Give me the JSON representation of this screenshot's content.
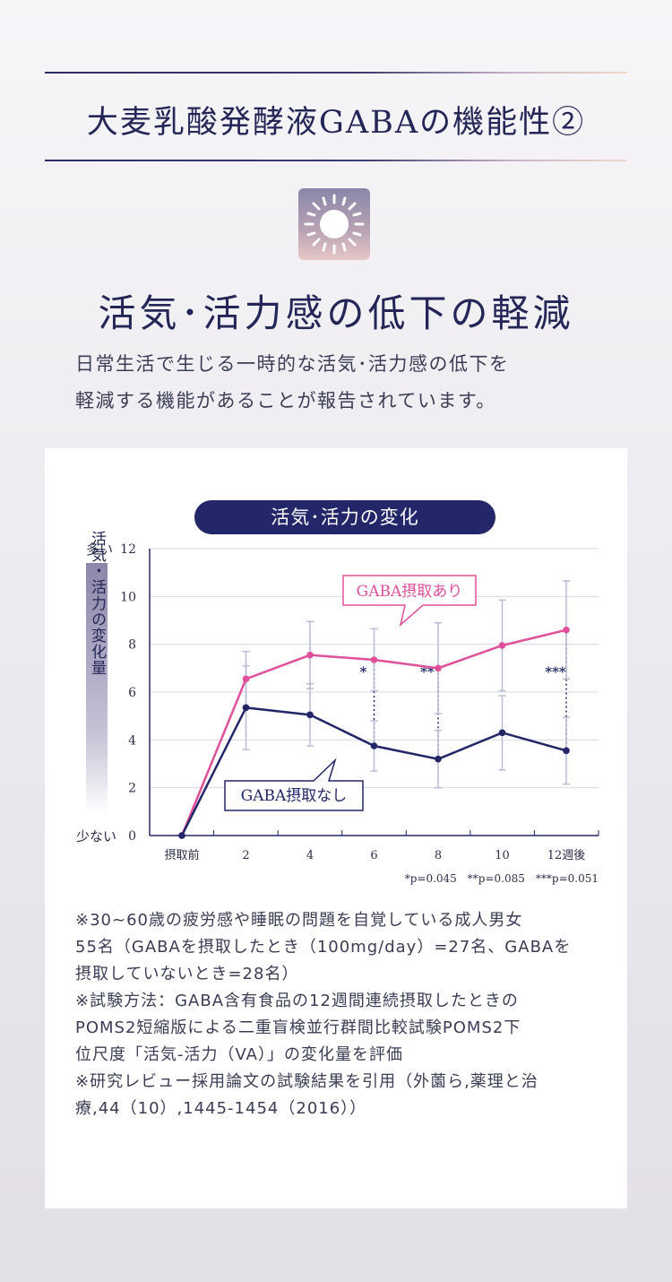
{
  "header": {
    "title": "大麦乳酸発酵液GABAの機能性②",
    "icon": "sun-icon"
  },
  "section": {
    "headline": "活気･活力感の低下の軽減",
    "intro_line1": "日常生活で生じる一時的な活気･活力感の低下を",
    "intro_line2": "軽減する機能があることが報告されています。"
  },
  "chart_title": "活気･活力の変化",
  "chart_data": {
    "type": "line",
    "title": "活気･活力の変化",
    "categories": [
      "摂取前",
      "2",
      "4",
      "6",
      "8",
      "10",
      "12週後"
    ],
    "ylim": [
      0,
      12
    ],
    "yticks": [
      "0",
      "2",
      "4",
      "6",
      "8",
      "10",
      "12"
    ],
    "ylabel": "活気・活力の変化量",
    "y_top_label": "多い",
    "y_bottom_label": "少ない",
    "grid": true,
    "series": [
      {
        "name": "GABA摂取あり",
        "color": "#e0509a",
        "values": [
          0,
          6.55,
          7.55,
          7.35,
          7.0,
          7.95,
          8.6
        ],
        "error": [
          0,
          1.15,
          1.4,
          1.3,
          1.9,
          1.9,
          2.05
        ]
      },
      {
        "name": "GABA摂取なし",
        "color": "#232668",
        "values": [
          0,
          5.35,
          5.05,
          3.75,
          3.2,
          4.3,
          3.55
        ],
        "error": [
          0,
          1.75,
          1.3,
          1.05,
          1.2,
          1.55,
          1.4
        ]
      }
    ],
    "significance": [
      {
        "category": "6",
        "mark": "*"
      },
      {
        "category": "8",
        "mark": "**"
      },
      {
        "category": "12週後",
        "mark": "***"
      }
    ],
    "pvalue_note": "*p=0.045　**p=0.085　***p=0.051"
  },
  "notes": [
    "※30~60歳の疲労感や睡眠の問題を自覚している成人男女",
    "55名（GABAを摂取したとき（100mg/day）=27名、GABAを",
    "摂取していないとき=28名）",
    "※試験方法：GABA含有食品の12週間連続摂取したときの",
    "POMS2短縮版による二重盲検並行群間比較試験POMS2下",
    "位尺度「活気-活力（VA）」の変化量を評価",
    "※研究レビュー採用論文の試験結果を引用（外薗ら,薬理と治",
    "療,44（10）,1445-1454（2016））"
  ]
}
